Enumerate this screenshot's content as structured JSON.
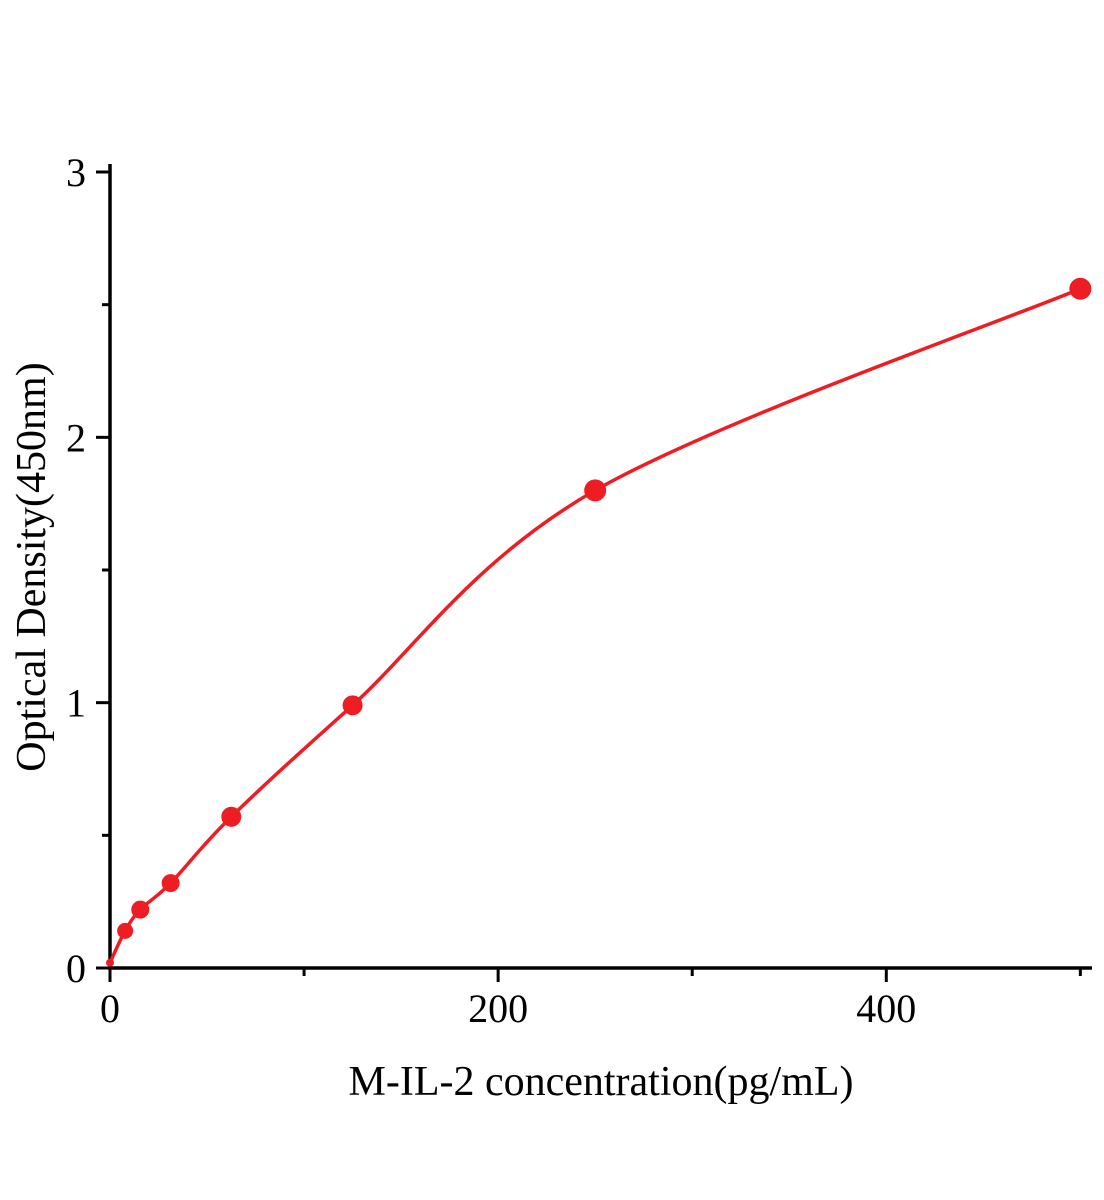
{
  "chart_data": {
    "type": "scatter",
    "title": "",
    "xlabel": "M-IL-2 concentration(pg/mL)",
    "ylabel": "Optical Density(450nm)",
    "x": [
      0,
      7.8,
      15.6,
      31.25,
      62.5,
      125,
      250,
      500
    ],
    "y": [
      0.02,
      0.14,
      0.22,
      0.32,
      0.57,
      0.99,
      1.8,
      2.56
    ],
    "curve": "smooth-fit-through-points",
    "xlim": [
      0,
      506
    ],
    "ylim": [
      0,
      3
    ],
    "x_major_ticks": [
      0,
      200,
      400
    ],
    "x_minor_ticks": [
      100,
      300,
      500
    ],
    "y_major_ticks": [
      0,
      1,
      2,
      3
    ],
    "y_minor_ticks": [
      0.5,
      1.5,
      2.5
    ],
    "legend": "none",
    "grid": "off",
    "point_color": "#ee1d23",
    "line_color": "#ee1d23",
    "axis_color": "#000000",
    "marker_radii": [
      4,
      8,
      9,
      9,
      10,
      10,
      11,
      11
    ]
  }
}
